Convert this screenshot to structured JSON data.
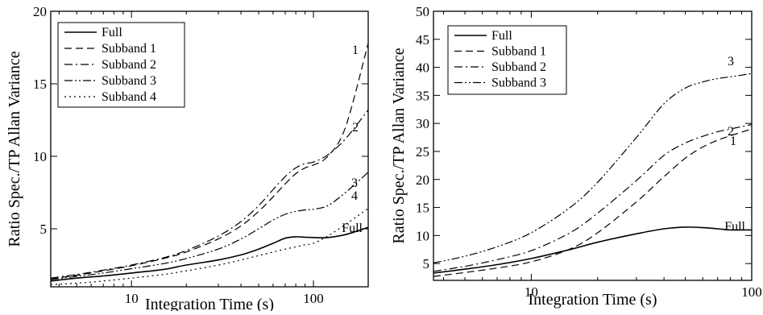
{
  "chart_data": [
    {
      "type": "line",
      "xlabel": "Integration Time (s)",
      "ylabel": "Ratio Spec./TP Allan Variance",
      "xscale": "log",
      "xlim": [
        3.6,
        200
      ],
      "ylim": [
        1,
        20
      ],
      "xticks": [
        10,
        100
      ],
      "yticks": [
        5,
        10,
        15,
        20
      ],
      "ytick_labels_shown": [
        "5",
        "10",
        "15",
        "20"
      ],
      "legend_position": "top-left",
      "series": [
        {
          "name": "Full",
          "dash": "solid",
          "curve_label": "Full",
          "x": [
            3.6,
            5,
            7,
            10,
            15,
            20,
            30,
            40,
            50,
            60,
            70,
            80,
            90,
            100,
            120,
            150,
            200
          ],
          "y": [
            1.4,
            1.6,
            1.75,
            1.95,
            2.2,
            2.5,
            2.85,
            3.2,
            3.6,
            4.0,
            4.35,
            4.45,
            4.42,
            4.4,
            4.4,
            4.6,
            5.1
          ]
        },
        {
          "name": "Subband 1",
          "dash": "long",
          "curve_label": "1",
          "x": [
            3.6,
            5,
            7,
            10,
            15,
            20,
            30,
            40,
            50,
            60,
            70,
            80,
            90,
            100,
            120,
            150,
            200
          ],
          "y": [
            1.55,
            1.8,
            2.1,
            2.45,
            2.95,
            3.4,
            4.3,
            5.2,
            6.2,
            7.2,
            8.1,
            8.8,
            9.2,
            9.4,
            10.0,
            12.0,
            17.8
          ]
        },
        {
          "name": "Subband 2",
          "dash": "dashdot",
          "curve_label": "2",
          "x": [
            3.6,
            5,
            7,
            10,
            15,
            20,
            30,
            40,
            50,
            60,
            70,
            80,
            90,
            100,
            120,
            150,
            200
          ],
          "y": [
            1.6,
            1.85,
            2.15,
            2.5,
            3.0,
            3.5,
            4.5,
            5.5,
            6.6,
            7.7,
            8.6,
            9.2,
            9.5,
            9.6,
            10.1,
            11.2,
            13.2
          ]
        },
        {
          "name": "Subband 3",
          "dash": "dashdotdot",
          "curve_label": "3",
          "x": [
            3.6,
            5,
            7,
            10,
            15,
            20,
            30,
            40,
            50,
            60,
            70,
            80,
            90,
            100,
            120,
            150,
            200
          ],
          "y": [
            1.5,
            1.72,
            1.95,
            2.25,
            2.6,
            2.95,
            3.6,
            4.3,
            5.0,
            5.6,
            6.0,
            6.2,
            6.3,
            6.35,
            6.6,
            7.5,
            8.9
          ]
        },
        {
          "name": "Subband 4",
          "dash": "dotted",
          "curve_label": "4",
          "x": [
            3.6,
            5,
            7,
            10,
            15,
            20,
            30,
            40,
            50,
            60,
            70,
            80,
            90,
            100,
            120,
            150,
            200
          ],
          "y": [
            1.15,
            1.25,
            1.4,
            1.6,
            1.85,
            2.1,
            2.5,
            2.85,
            3.15,
            3.4,
            3.6,
            3.75,
            3.9,
            4.0,
            4.5,
            5.3,
            6.4
          ]
        }
      ]
    },
    {
      "type": "line",
      "xlabel": "Integration Time (s)",
      "ylabel": "Ratio Spec./TP Allan Variance",
      "xscale": "log",
      "xlim": [
        3.6,
        100
      ],
      "ylim": [
        2,
        50
      ],
      "xticks": [
        10,
        100
      ],
      "yticks": [
        5,
        10,
        15,
        20,
        25,
        30,
        35,
        40,
        45,
        50
      ],
      "ytick_labels_shown": [
        "5",
        "10",
        "15",
        "20",
        "25",
        "30",
        "35",
        "40",
        "45",
        "50"
      ],
      "legend_position": "top-left",
      "series": [
        {
          "name": "Full",
          "dash": "solid",
          "curve_label": "Full",
          "x": [
            3.6,
            5,
            7,
            10,
            15,
            20,
            30,
            40,
            50,
            60,
            70,
            80,
            100
          ],
          "y": [
            3.3,
            4.0,
            4.8,
            5.9,
            7.5,
            8.8,
            10.3,
            11.2,
            11.5,
            11.4,
            11.2,
            11.0,
            11.0
          ]
        },
        {
          "name": "Subband 1",
          "dash": "long",
          "curve_label": "1",
          "x": [
            3.6,
            5,
            7,
            10,
            15,
            20,
            30,
            40,
            50,
            60,
            70,
            80,
            100
          ],
          "y": [
            2.7,
            3.4,
            4.2,
            5.3,
            7.6,
            10.5,
            16.0,
            20.5,
            23.8,
            25.8,
            27.0,
            27.8,
            29.0
          ]
        },
        {
          "name": "Subband 2",
          "dash": "dashdot",
          "curve_label": "2",
          "x": [
            3.6,
            5,
            7,
            10,
            15,
            20,
            30,
            40,
            50,
            60,
            70,
            80,
            100
          ],
          "y": [
            3.6,
            4.5,
            5.7,
            7.3,
            10.5,
            14.0,
            19.8,
            24.3,
            26.5,
            27.7,
            28.5,
            29.0,
            29.8
          ]
        },
        {
          "name": "Subband 3",
          "dash": "dashdotdot",
          "curve_label": "3",
          "x": [
            3.6,
            5,
            7,
            10,
            15,
            20,
            30,
            40,
            50,
            60,
            70,
            80,
            100
          ],
          "y": [
            5.1,
            6.3,
            8.0,
            10.5,
            15.0,
            19.5,
            27.5,
            33.5,
            36.3,
            37.4,
            38.0,
            38.3,
            38.9
          ]
        }
      ]
    }
  ]
}
